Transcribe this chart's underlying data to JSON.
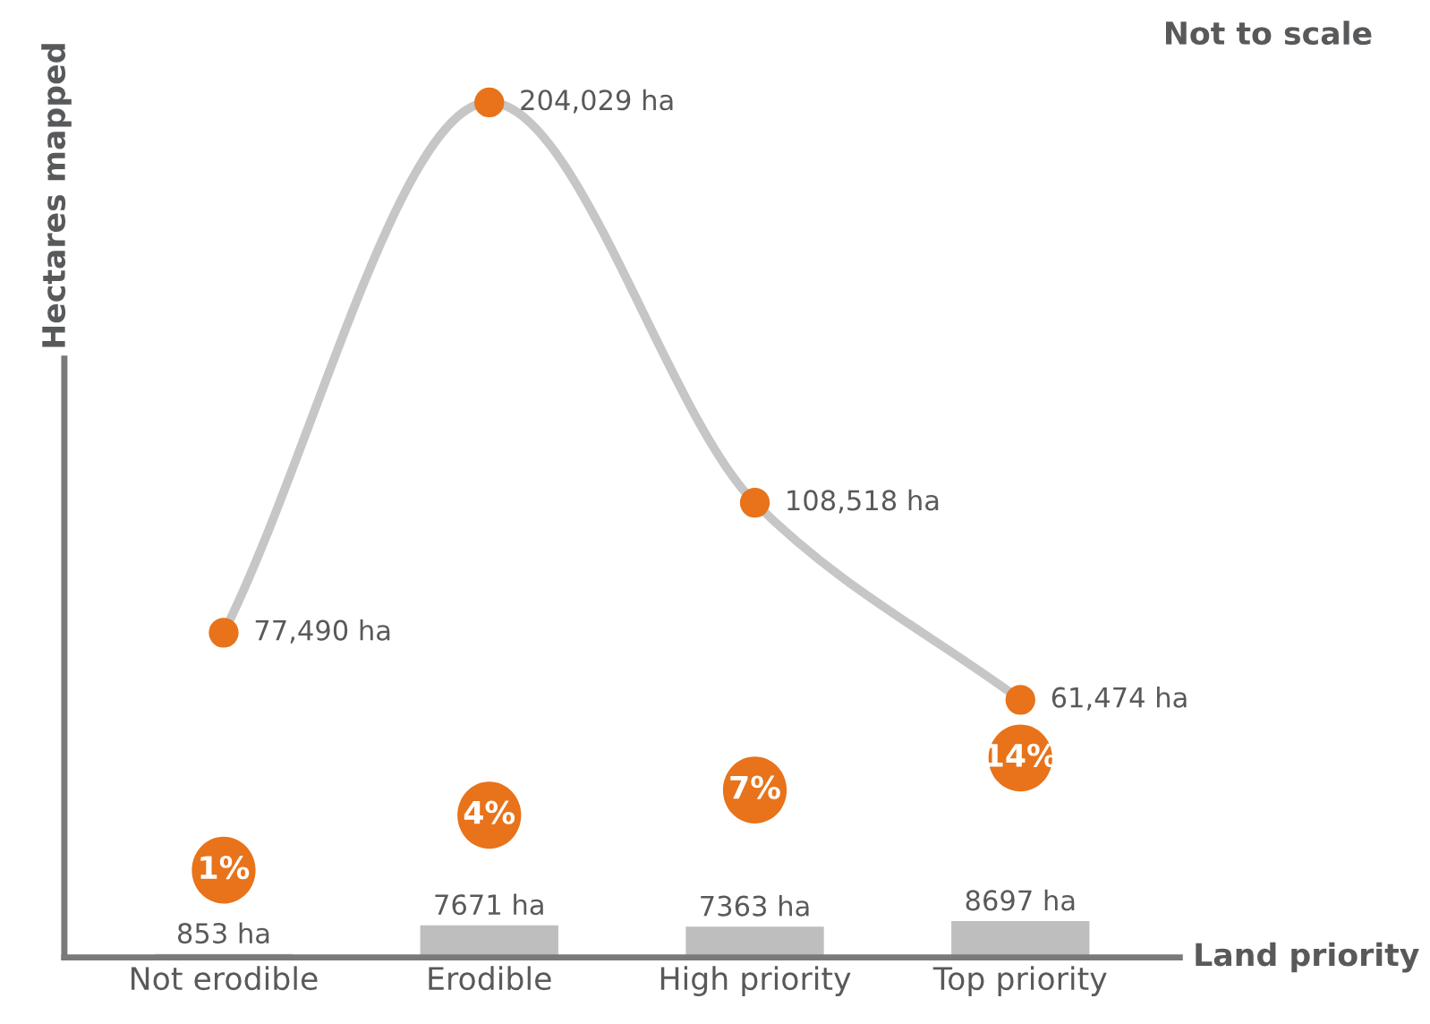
{
  "chart_data": {
    "type": "line",
    "xlabel": "Land priority",
    "ylabel": "Hectares mapped",
    "categories": [
      "Not erodible",
      "Erodible",
      "High priority",
      "Top priority"
    ],
    "series": [
      {
        "color": "#e8731a",
        "values": [
          77490,
          204029,
          108518,
          61474
        ],
        "value_labels": [
          "77,490 ha",
          "204,029 ha",
          "108,518 ha",
          "61,474 ha"
        ]
      },
      {
        "type": "bar",
        "color": "#bdbebd",
        "values": [
          853,
          7671,
          7363,
          8697
        ],
        "value_labels": [
          "853 ha",
          "7671 ha",
          "7363 ha",
          "8697 ha"
        ]
      }
    ],
    "annotations": [
      "Not to scale",
      "1%",
      "4%",
      "7%",
      "14%"
    ],
    "tick_labels": "x",
    "marker": "circle",
    "grid": false
  }
}
